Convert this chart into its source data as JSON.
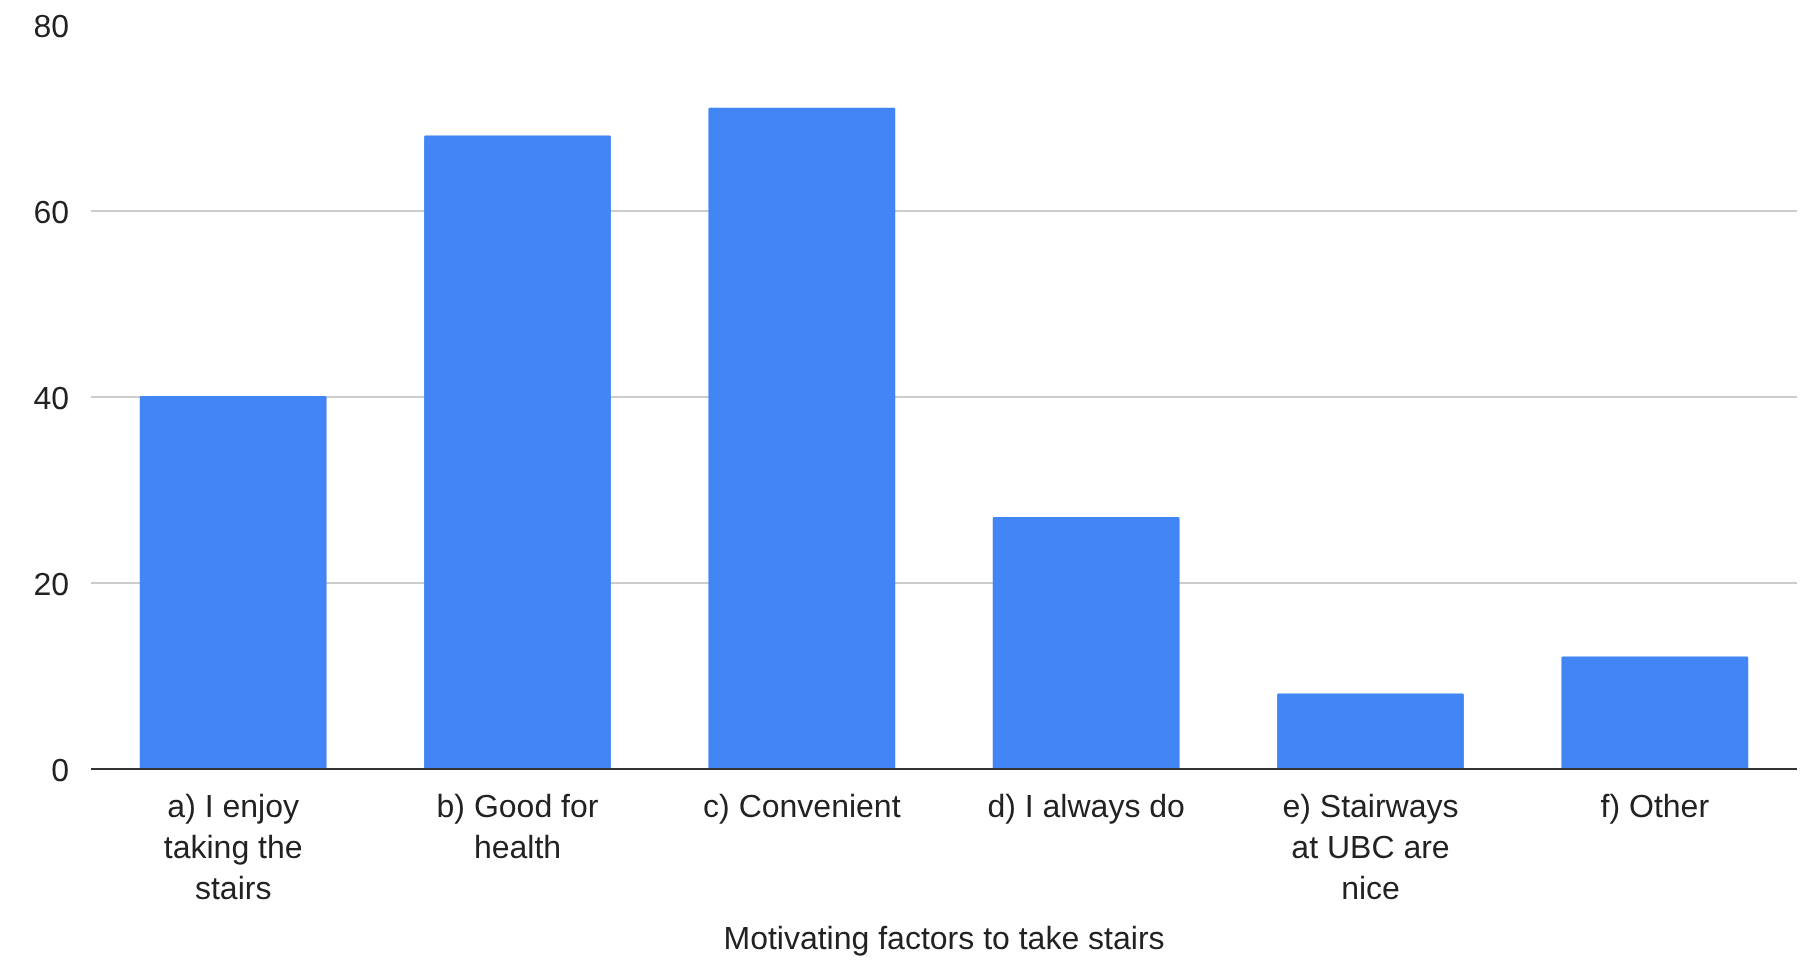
{
  "chart_data": {
    "type": "bar",
    "xlabel": "Motivating factors to take stairs",
    "categories": [
      "a) I enjoy taking the stairs",
      "b) Good for health",
      "c) Convenient",
      "d) I always do",
      "e) Stairways at UBC are nice",
      "f) Other"
    ],
    "values": [
      40,
      68,
      71,
      27,
      8,
      12
    ],
    "color": "#4285f4",
    "ylim": [
      0,
      80
    ],
    "yticks": [
      0,
      20,
      40,
      60,
      80
    ],
    "grid": "y"
  }
}
